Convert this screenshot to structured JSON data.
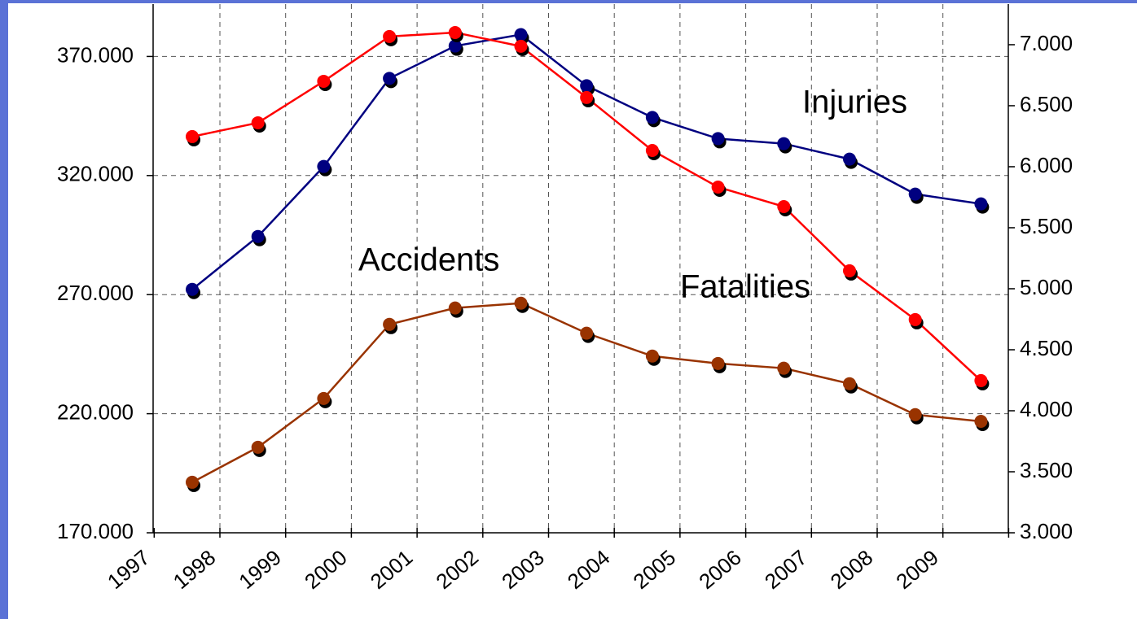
{
  "chart_data": {
    "type": "line",
    "categories": [
      "1997",
      "1998",
      "1999",
      "2000",
      "2001",
      "2002",
      "2003",
      "2004",
      "2005",
      "2006",
      "2007",
      "2008",
      "2009"
    ],
    "series": [
      {
        "name": "Injuries",
        "color": "#000080",
        "values": [
          272200,
          294400,
          323800,
          360800,
          374400,
          379200,
          357700,
          344400,
          335500,
          333400,
          326900,
          312200,
          308100
        ]
      },
      {
        "name": "Fatalities",
        "color": "#ff0000",
        "axis": "y2",
        "values": [
          6247,
          6360,
          6700,
          7067,
          7100,
          6987,
          6567,
          6133,
          5833,
          5673,
          5147,
          4747,
          4247
        ]
      },
      {
        "name": "Accidents",
        "color": "#993300",
        "values": [
          191200,
          205900,
          226400,
          257500,
          264400,
          266400,
          253800,
          244200,
          241100,
          239100,
          232600,
          219600,
          216800
        ]
      }
    ],
    "ylim": [
      170000,
      392000
    ],
    "yticks": [
      {
        "value": 170000,
        "label": "170.000"
      },
      {
        "value": 220000,
        "label": "220.000"
      },
      {
        "value": 270000,
        "label": "270.000"
      },
      {
        "value": 320000,
        "label": "320.000"
      },
      {
        "value": 370000,
        "label": "370.000"
      }
    ],
    "y2lim": [
      3000,
      7333
    ],
    "y2ticks": [
      {
        "value": 3000,
        "label": "3.000"
      },
      {
        "value": 3500,
        "label": "3.500"
      },
      {
        "value": 4000,
        "label": "4.000"
      },
      {
        "value": 4500,
        "label": "4.500"
      },
      {
        "value": 5000,
        "label": "5.000"
      },
      {
        "value": 5500,
        "label": "5.500"
      },
      {
        "value": 6000,
        "label": "6.000"
      },
      {
        "value": 6500,
        "label": "6.500"
      },
      {
        "value": 7000,
        "label": "7.000"
      }
    ],
    "grid": true
  }
}
